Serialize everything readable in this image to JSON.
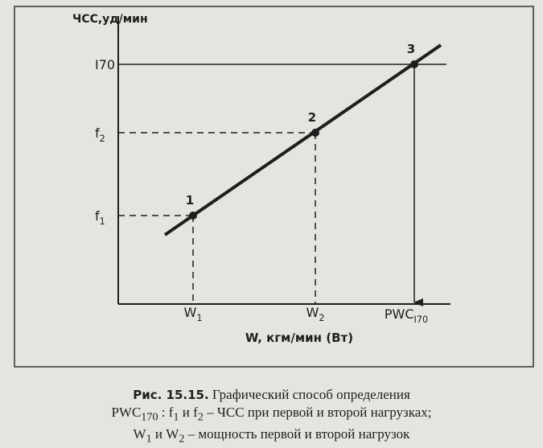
{
  "figure": {
    "axis_y_title": "ЧСС,уд/мин",
    "axis_x_title": "W, кгм/мин (Вт)",
    "y_labels": [
      {
        "main": "I70"
      },
      {
        "main": "f",
        "sub": "2"
      },
      {
        "main": "f",
        "sub": "1"
      }
    ],
    "x_labels": [
      {
        "main": "W",
        "sub": "1"
      },
      {
        "main": "W",
        "sub": "2"
      },
      {
        "main": "PWC",
        "sub": "I70"
      }
    ],
    "points": [
      {
        "label": "1"
      },
      {
        "label": "2"
      },
      {
        "label": "3"
      }
    ]
  },
  "caption": {
    "label": "Рис. 15.15.",
    "lines": [
      [
        {
          "text": "Графический способ определения"
        }
      ],
      [
        {
          "text": "PWC"
        },
        {
          "text": "170",
          "sub": true
        },
        {
          "text": " : f"
        },
        {
          "text": "1",
          "sub": true
        },
        {
          "text": " и f"
        },
        {
          "text": "2",
          "sub": true
        },
        {
          "text": " – ЧСС при первой и второй нагрузках;"
        }
      ],
      [
        {
          "text": "W"
        },
        {
          "text": "1",
          "sub": true
        },
        {
          "text": " и W"
        },
        {
          "text": "2",
          "sub": true
        },
        {
          "text": " – мощность первой и второй нагрузок"
        }
      ]
    ]
  }
}
